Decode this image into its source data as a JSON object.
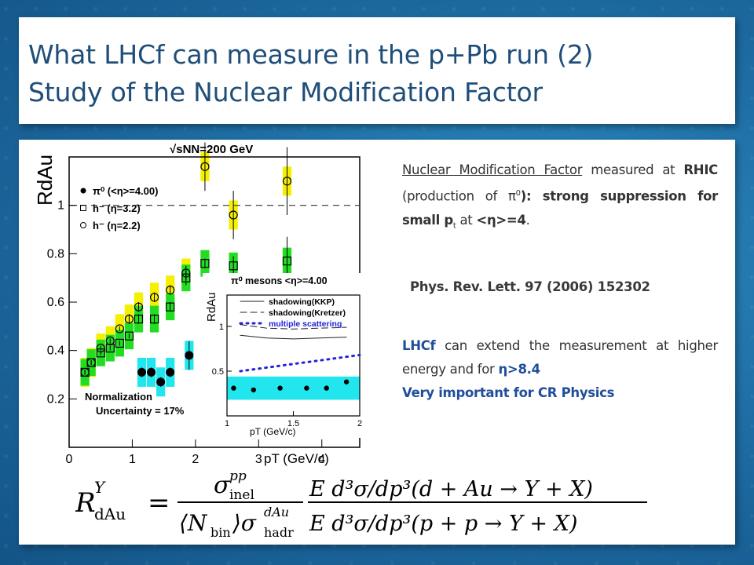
{
  "title": {
    "line1": "What LHCf can measure in the p+Pb run (2)",
    "line2": "Study of the Nuclear Modification Factor"
  },
  "text": {
    "p1_a": "Nuclear Modification Factor",
    "p1_b": " measured at ",
    "p1_rhic": "RHIC",
    "p1_c": " (production of π",
    "p1_d": "0",
    "p1_e": "): strong suppression for small p",
    "p1_f": "t",
    "p1_g": " at ",
    "p1_h": "<η>=4",
    "p1_i": ".",
    "ref": "Phys. Rev. Lett. 97 (2006) 152302",
    "p2_a": "LHCf",
    "p2_b": " can extend the measurement at higher energy and for ",
    "p2_c": "η>8.4",
    "p2_d": "Very important for CR Physics"
  },
  "formula": {
    "lhs": "R",
    "lhs_sup": "Y",
    "lhs_sub": "dAu",
    "eq": "=",
    "num1": "σ",
    "num1_sup": "pp",
    "num1_sub": "inel",
    "den1": "⟨N",
    "den1_sub": "bin",
    "den1_b": "⟩σ",
    "den1_sup": "dAu",
    "den1_sub2": "hadr",
    "num2": "E d³σ/dp³(d + Au → Y + X)",
    "den2": "E d³σ/dp³(p + p → Y + X)"
  },
  "chart_data": {
    "type": "scatter",
    "title": "√sNN=200 GeV",
    "xlabel": "pT (GeV/c)",
    "ylabel": "RdAu",
    "xlim": [
      0,
      4.6
    ],
    "ylim": [
      0,
      1.2
    ],
    "x_ticks": [
      "0",
      "1",
      "2",
      "3",
      "4"
    ],
    "y_ticks": [
      "0.2",
      "0.4",
      "0.6",
      "0.8",
      "1"
    ],
    "reference_line": 1.0,
    "legend": [
      "π⁰ (<η>=4.00)",
      "h⁻ (η=3.2)",
      "h⁻ (η=2.2)"
    ],
    "annotation": "Normalization\nUncertainty = 17%",
    "colors": {
      "yellow_band": "#f5ef00",
      "green_band": "#22dd22",
      "cyan_band": "#22e6ee"
    },
    "series": [
      {
        "name": "π⁰ (<η>=4.00)",
        "marker": "filled-circle",
        "band_color": "#22e6ee",
        "x": [
          1.15,
          1.3,
          1.45,
          1.6,
          1.9
        ],
        "y": [
          0.31,
          0.31,
          0.27,
          0.31,
          0.38
        ],
        "err": [
          0.02,
          0.02,
          0.02,
          0.02,
          0.06
        ]
      },
      {
        "name": "h⁻ (η=3.2)",
        "marker": "open-square",
        "band_color": "#22dd22",
        "x": [
          0.25,
          0.35,
          0.5,
          0.65,
          0.8,
          0.95,
          1.1,
          1.35,
          1.6,
          1.85,
          2.15,
          2.6,
          3.45
        ],
        "y": [
          0.31,
          0.35,
          0.39,
          0.41,
          0.43,
          0.46,
          0.53,
          0.53,
          0.58,
          0.7,
          0.76,
          0.75,
          0.77
        ],
        "err": [
          0.01,
          0.01,
          0.01,
          0.01,
          0.01,
          0.01,
          0.02,
          0.02,
          0.02,
          0.03,
          0.02,
          0.04,
          0.1
        ]
      },
      {
        "name": "h⁻ (η=2.2)",
        "marker": "open-circle",
        "band_color": "#f5ef00",
        "x": [
          0.25,
          0.35,
          0.5,
          0.65,
          0.8,
          0.95,
          1.1,
          1.35,
          1.6,
          1.85,
          2.15,
          2.6,
          3.45
        ],
        "y": [
          0.31,
          0.35,
          0.41,
          0.44,
          0.49,
          0.53,
          0.58,
          0.62,
          0.65,
          0.72,
          1.16,
          0.96,
          1.1
        ],
        "err": [
          0.01,
          0.01,
          0.01,
          0.01,
          0.01,
          0.02,
          0.02,
          0.02,
          0.02,
          0.03,
          0.1,
          0.1,
          0.14
        ]
      }
    ],
    "inset": {
      "title": "π⁰ mesons <η>=4.00",
      "xlabel": "pT (GeV/c)",
      "ylabel": "RdAu",
      "xlim": [
        1,
        2
      ],
      "ylim": [
        0,
        1.35
      ],
      "x_ticks": [
        "1",
        "1.5",
        "2"
      ],
      "y_ticks": [
        "0.5",
        "1"
      ],
      "legend": [
        "shadowing(KKP)",
        "shadowing(Kretzer)",
        "multiple scattering"
      ],
      "points": {
        "x": [
          1.05,
          1.2,
          1.4,
          1.6,
          1.75,
          1.9
        ],
        "y": [
          0.31,
          0.29,
          0.31,
          0.31,
          0.31,
          0.38
        ]
      },
      "curves": [
        {
          "name": "shadowing(KKP)",
          "x": [
            1.1,
            1.3,
            1.5,
            1.7,
            1.9
          ],
          "y": [
            0.9,
            0.87,
            0.86,
            0.87,
            0.88
          ]
        },
        {
          "name": "shadowing(Kretzer)",
          "x": [
            1.1,
            1.3,
            1.5,
            1.7,
            1.9
          ],
          "y": [
            1.02,
            0.98,
            0.97,
            0.98,
            0.99
          ]
        },
        {
          "name": "multiple scattering",
          "x": [
            1.1,
            1.3,
            1.5,
            1.7,
            1.9,
            2.0
          ],
          "y": [
            0.5,
            0.54,
            0.58,
            0.62,
            0.66,
            0.68
          ]
        }
      ]
    }
  }
}
